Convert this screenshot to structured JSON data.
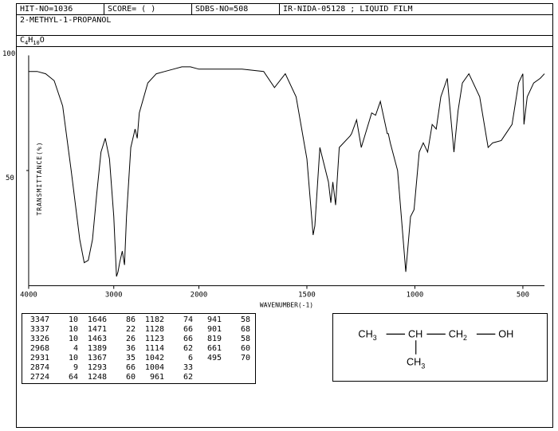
{
  "header": {
    "hit_no_label": "HIT-NO=",
    "hit_no": "1036",
    "score_label": "SCORE=",
    "score": "(   )",
    "sdbs_label": "SDBS-NO=",
    "sdbs_no": "508",
    "right": "IR-NIDA-05128 ; LIQUID FILM"
  },
  "compound": "2-METHYL-1-PROPANOL",
  "formula_parts": [
    "C",
    "4",
    "H",
    "10",
    "O"
  ],
  "chart": {
    "type": "line",
    "xlabel": "WAVENUMBER(-1)",
    "ylabel": "TRANSMITTANCE(%)",
    "xlim": [
      4000,
      400
    ],
    "ylim": [
      0,
      100
    ],
    "xticks": [
      4000,
      3000,
      2000,
      1500,
      1000,
      500
    ],
    "yticks": [
      50,
      100
    ],
    "line_color": "#000000",
    "line_width": 1,
    "background_color": "#ffffff",
    "grid": false,
    "spectrum": [
      [
        4000,
        93
      ],
      [
        3900,
        93
      ],
      [
        3800,
        92
      ],
      [
        3700,
        89
      ],
      [
        3600,
        78
      ],
      [
        3500,
        50
      ],
      [
        3400,
        20
      ],
      [
        3347,
        10
      ],
      [
        3300,
        11
      ],
      [
        3250,
        20
      ],
      [
        3200,
        40
      ],
      [
        3150,
        58
      ],
      [
        3100,
        64
      ],
      [
        3050,
        55
      ],
      [
        3000,
        30
      ],
      [
        2968,
        4
      ],
      [
        2950,
        6
      ],
      [
        2931,
        10
      ],
      [
        2900,
        15
      ],
      [
        2874,
        9
      ],
      [
        2850,
        30
      ],
      [
        2800,
        60
      ],
      [
        2750,
        68
      ],
      [
        2724,
        64
      ],
      [
        2700,
        75
      ],
      [
        2600,
        88
      ],
      [
        2500,
        92
      ],
      [
        2400,
        93
      ],
      [
        2300,
        94
      ],
      [
        2200,
        95
      ],
      [
        2100,
        95
      ],
      [
        2000,
        94
      ],
      [
        1900,
        94
      ],
      [
        1800,
        94
      ],
      [
        1700,
        93
      ],
      [
        1650,
        86
      ],
      [
        1600,
        92
      ],
      [
        1550,
        82
      ],
      [
        1500,
        55
      ],
      [
        1471,
        22
      ],
      [
        1463,
        26
      ],
      [
        1440,
        60
      ],
      [
        1400,
        45
      ],
      [
        1389,
        36
      ],
      [
        1380,
        45
      ],
      [
        1367,
        35
      ],
      [
        1350,
        60
      ],
      [
        1300,
        65
      ],
      [
        1293,
        66
      ],
      [
        1270,
        72
      ],
      [
        1248,
        60
      ],
      [
        1200,
        75
      ],
      [
        1182,
        74
      ],
      [
        1160,
        80
      ],
      [
        1128,
        66
      ],
      [
        1123,
        66
      ],
      [
        1114,
        62
      ],
      [
        1080,
        50
      ],
      [
        1042,
        6
      ],
      [
        1020,
        30
      ],
      [
        1004,
        33
      ],
      [
        980,
        58
      ],
      [
        961,
        62
      ],
      [
        941,
        58
      ],
      [
        920,
        70
      ],
      [
        901,
        68
      ],
      [
        880,
        82
      ],
      [
        850,
        90
      ],
      [
        819,
        58
      ],
      [
        800,
        76
      ],
      [
        780,
        88
      ],
      [
        750,
        92
      ],
      [
        700,
        82
      ],
      [
        661,
        60
      ],
      [
        640,
        62
      ],
      [
        600,
        63
      ],
      [
        550,
        70
      ],
      [
        520,
        88
      ],
      [
        500,
        92
      ],
      [
        495,
        70
      ],
      [
        480,
        82
      ],
      [
        450,
        88
      ],
      [
        420,
        90
      ],
      [
        400,
        92
      ]
    ]
  },
  "peak_table": {
    "columns": 4,
    "rows": [
      [
        [
          "3347",
          "10"
        ],
        [
          "1646",
          "86"
        ],
        [
          "1182",
          "74"
        ],
        [
          "941",
          "58"
        ]
      ],
      [
        [
          "3337",
          "10"
        ],
        [
          "1471",
          "22"
        ],
        [
          "1128",
          "66"
        ],
        [
          "901",
          "68"
        ]
      ],
      [
        [
          "3326",
          "10"
        ],
        [
          "1463",
          "26"
        ],
        [
          "1123",
          "66"
        ],
        [
          "819",
          "58"
        ]
      ],
      [
        [
          "2968",
          "4"
        ],
        [
          "1389",
          "36"
        ],
        [
          "1114",
          "62"
        ],
        [
          "661",
          "60"
        ]
      ],
      [
        [
          "2931",
          "10"
        ],
        [
          "1367",
          "35"
        ],
        [
          "1042",
          "6"
        ],
        [
          "495",
          "70"
        ]
      ],
      [
        [
          "2874",
          "9"
        ],
        [
          "1293",
          "66"
        ],
        [
          "1004",
          "33"
        ],
        [
          "",
          ""
        ]
      ],
      [
        [
          "2724",
          "64"
        ],
        [
          "1248",
          "60"
        ],
        [
          "961",
          "62"
        ],
        [
          "",
          ""
        ]
      ]
    ]
  },
  "structure": {
    "labels": {
      "ch3": "CH",
      "h3": "3",
      "ch2": "CH",
      "h2": "2",
      "ch": "CH",
      "oh": "OH"
    }
  }
}
